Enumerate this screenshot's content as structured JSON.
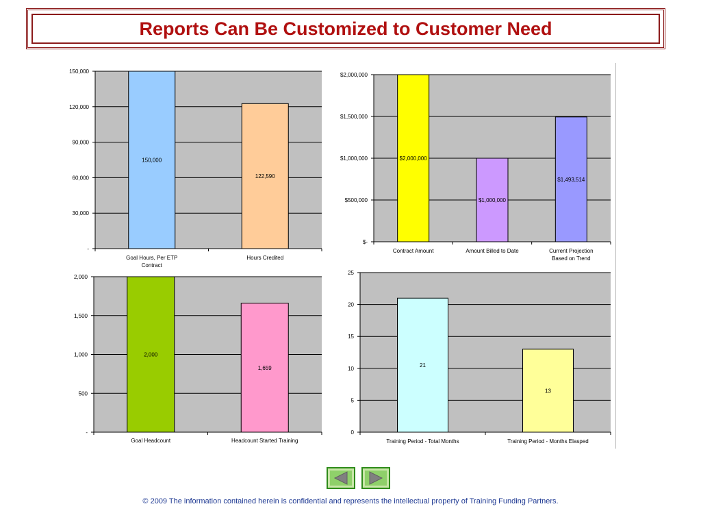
{
  "title": "Reports Can Be Customized to Customer Need",
  "footer": "© 2009 The information contained herein is confidential and represents the intellectual property of Training Funding Partners.",
  "nav": {
    "prev_icon": "triangle-left",
    "next_icon": "triangle-right",
    "color": "#2e8b1a"
  },
  "chart_data": [
    {
      "type": "bar",
      "categories": [
        "Goal Hours, Per ETP Contract",
        "Hours Credited"
      ],
      "values": [
        150000,
        122590
      ],
      "value_labels": [
        "150,000",
        "122,590"
      ],
      "colors": [
        "#99ccff",
        "#ffcc99"
      ],
      "ylim": [
        0,
        150000
      ],
      "yticks": [
        0,
        30000,
        60000,
        90000,
        120000,
        150000
      ],
      "ytick_labels": [
        "-",
        "30,000",
        "60,000",
        "90,000",
        "120,000",
        "150,000"
      ],
      "grid": true,
      "legend": "none"
    },
    {
      "type": "bar",
      "categories": [
        "Contract Amount",
        "Amount Billed to Date",
        "Current Projection Based on Trend"
      ],
      "values": [
        2000000,
        1000000,
        1493514
      ],
      "value_labels": [
        "$2,000,000",
        "$1,000,000",
        "$1,493,514"
      ],
      "colors": [
        "#ffff00",
        "#cc99ff",
        "#9999ff"
      ],
      "ylim": [
        0,
        2000000
      ],
      "yticks": [
        0,
        500000,
        1000000,
        1500000,
        2000000
      ],
      "ytick_labels": [
        "$-",
        "$500,000",
        "$1,000,000",
        "$1,500,000",
        "$2,000,000"
      ],
      "grid": true,
      "legend": "none"
    },
    {
      "type": "bar",
      "categories": [
        "Goal Headcount",
        "Headcount Started Training"
      ],
      "values": [
        2000,
        1659
      ],
      "value_labels": [
        "2,000",
        "1,659"
      ],
      "colors": [
        "#99cc00",
        "#ff99cc"
      ],
      "ylim": [
        0,
        2000
      ],
      "yticks": [
        0,
        500,
        1000,
        1500,
        2000
      ],
      "ytick_labels": [
        "-",
        "500",
        "1,000",
        "1,500",
        "2,000"
      ],
      "grid": true,
      "legend": "none"
    },
    {
      "type": "bar",
      "categories": [
        "Training Period - Total Months",
        "Training Period - Months Elasped"
      ],
      "values": [
        21,
        13
      ],
      "value_labels": [
        "21",
        "13"
      ],
      "colors": [
        "#ccffff",
        "#ffff99"
      ],
      "ylim": [
        0,
        25
      ],
      "yticks": [
        0,
        5,
        10,
        15,
        20,
        25
      ],
      "ytick_labels": [
        "0",
        "5",
        "10",
        "15",
        "20",
        "25"
      ],
      "grid": true,
      "legend": "none"
    }
  ]
}
